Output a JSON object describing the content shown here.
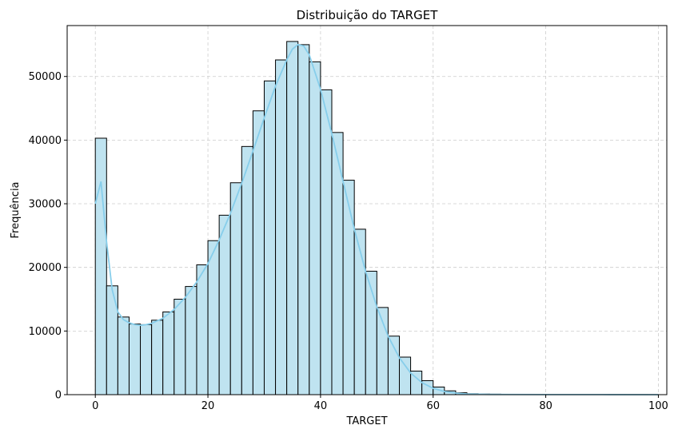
{
  "chart_data": {
    "type": "bar",
    "title": "Distribuição do TARGET",
    "xlabel": "TARGET",
    "ylabel": "Frequência",
    "xlim": [
      -5,
      101.5
    ],
    "ylim": [
      0,
      58000
    ],
    "xticks": [
      0,
      20,
      40,
      60,
      80,
      100
    ],
    "yticks": [
      0,
      10000,
      20000,
      30000,
      40000,
      50000
    ],
    "grid": true,
    "bin_width": 2,
    "bins_start": [
      0,
      2,
      4,
      6,
      8,
      10,
      12,
      14,
      16,
      18,
      20,
      22,
      24,
      26,
      28,
      30,
      32,
      34,
      36,
      38,
      40,
      42,
      44,
      46,
      48,
      50,
      52,
      54,
      56,
      58,
      60,
      62,
      64,
      66,
      68,
      70,
      72,
      74,
      76,
      78,
      80,
      82,
      84,
      86,
      88,
      90,
      92,
      94,
      96,
      98
    ],
    "values": [
      40300,
      17100,
      12200,
      11100,
      11000,
      11700,
      13000,
      15000,
      17000,
      20400,
      24200,
      28200,
      33300,
      39000,
      44600,
      49300,
      52600,
      55500,
      55000,
      52300,
      47900,
      41200,
      33700,
      26000,
      19400,
      13700,
      9200,
      5900,
      3700,
      2200,
      1200,
      600,
      300,
      150,
      100,
      80,
      60,
      50,
      40,
      30,
      30,
      25,
      20,
      20,
      15,
      10,
      10,
      10,
      10,
      5
    ],
    "kde": {
      "x": [
        0,
        1,
        2,
        3,
        4,
        5,
        6,
        7,
        8,
        9,
        10,
        12,
        14,
        16,
        18,
        20,
        22,
        24,
        26,
        28,
        30,
        32,
        34,
        35,
        36,
        37,
        38,
        40,
        42,
        44,
        46,
        48,
        50,
        52,
        54,
        56,
        58,
        60,
        62,
        64,
        66,
        70,
        80,
        90,
        100
      ],
      "y": [
        30000,
        33500,
        24000,
        16500,
        13000,
        11800,
        11300,
        11000,
        10900,
        11000,
        11200,
        12000,
        13400,
        15300,
        17700,
        20600,
        24300,
        28500,
        33200,
        38300,
        43500,
        48500,
        52600,
        54300,
        55000,
        54800,
        53400,
        48000,
        41000,
        33500,
        26000,
        19400,
        13800,
        9200,
        5800,
        3400,
        1900,
        1000,
        500,
        250,
        100,
        40,
        15,
        8,
        5
      ]
    },
    "colors": {
      "bar_fill": "#bfe3f0",
      "bar_edge": "#000000",
      "kde_line": "#87ceeb",
      "grid": "#cccccc"
    }
  }
}
